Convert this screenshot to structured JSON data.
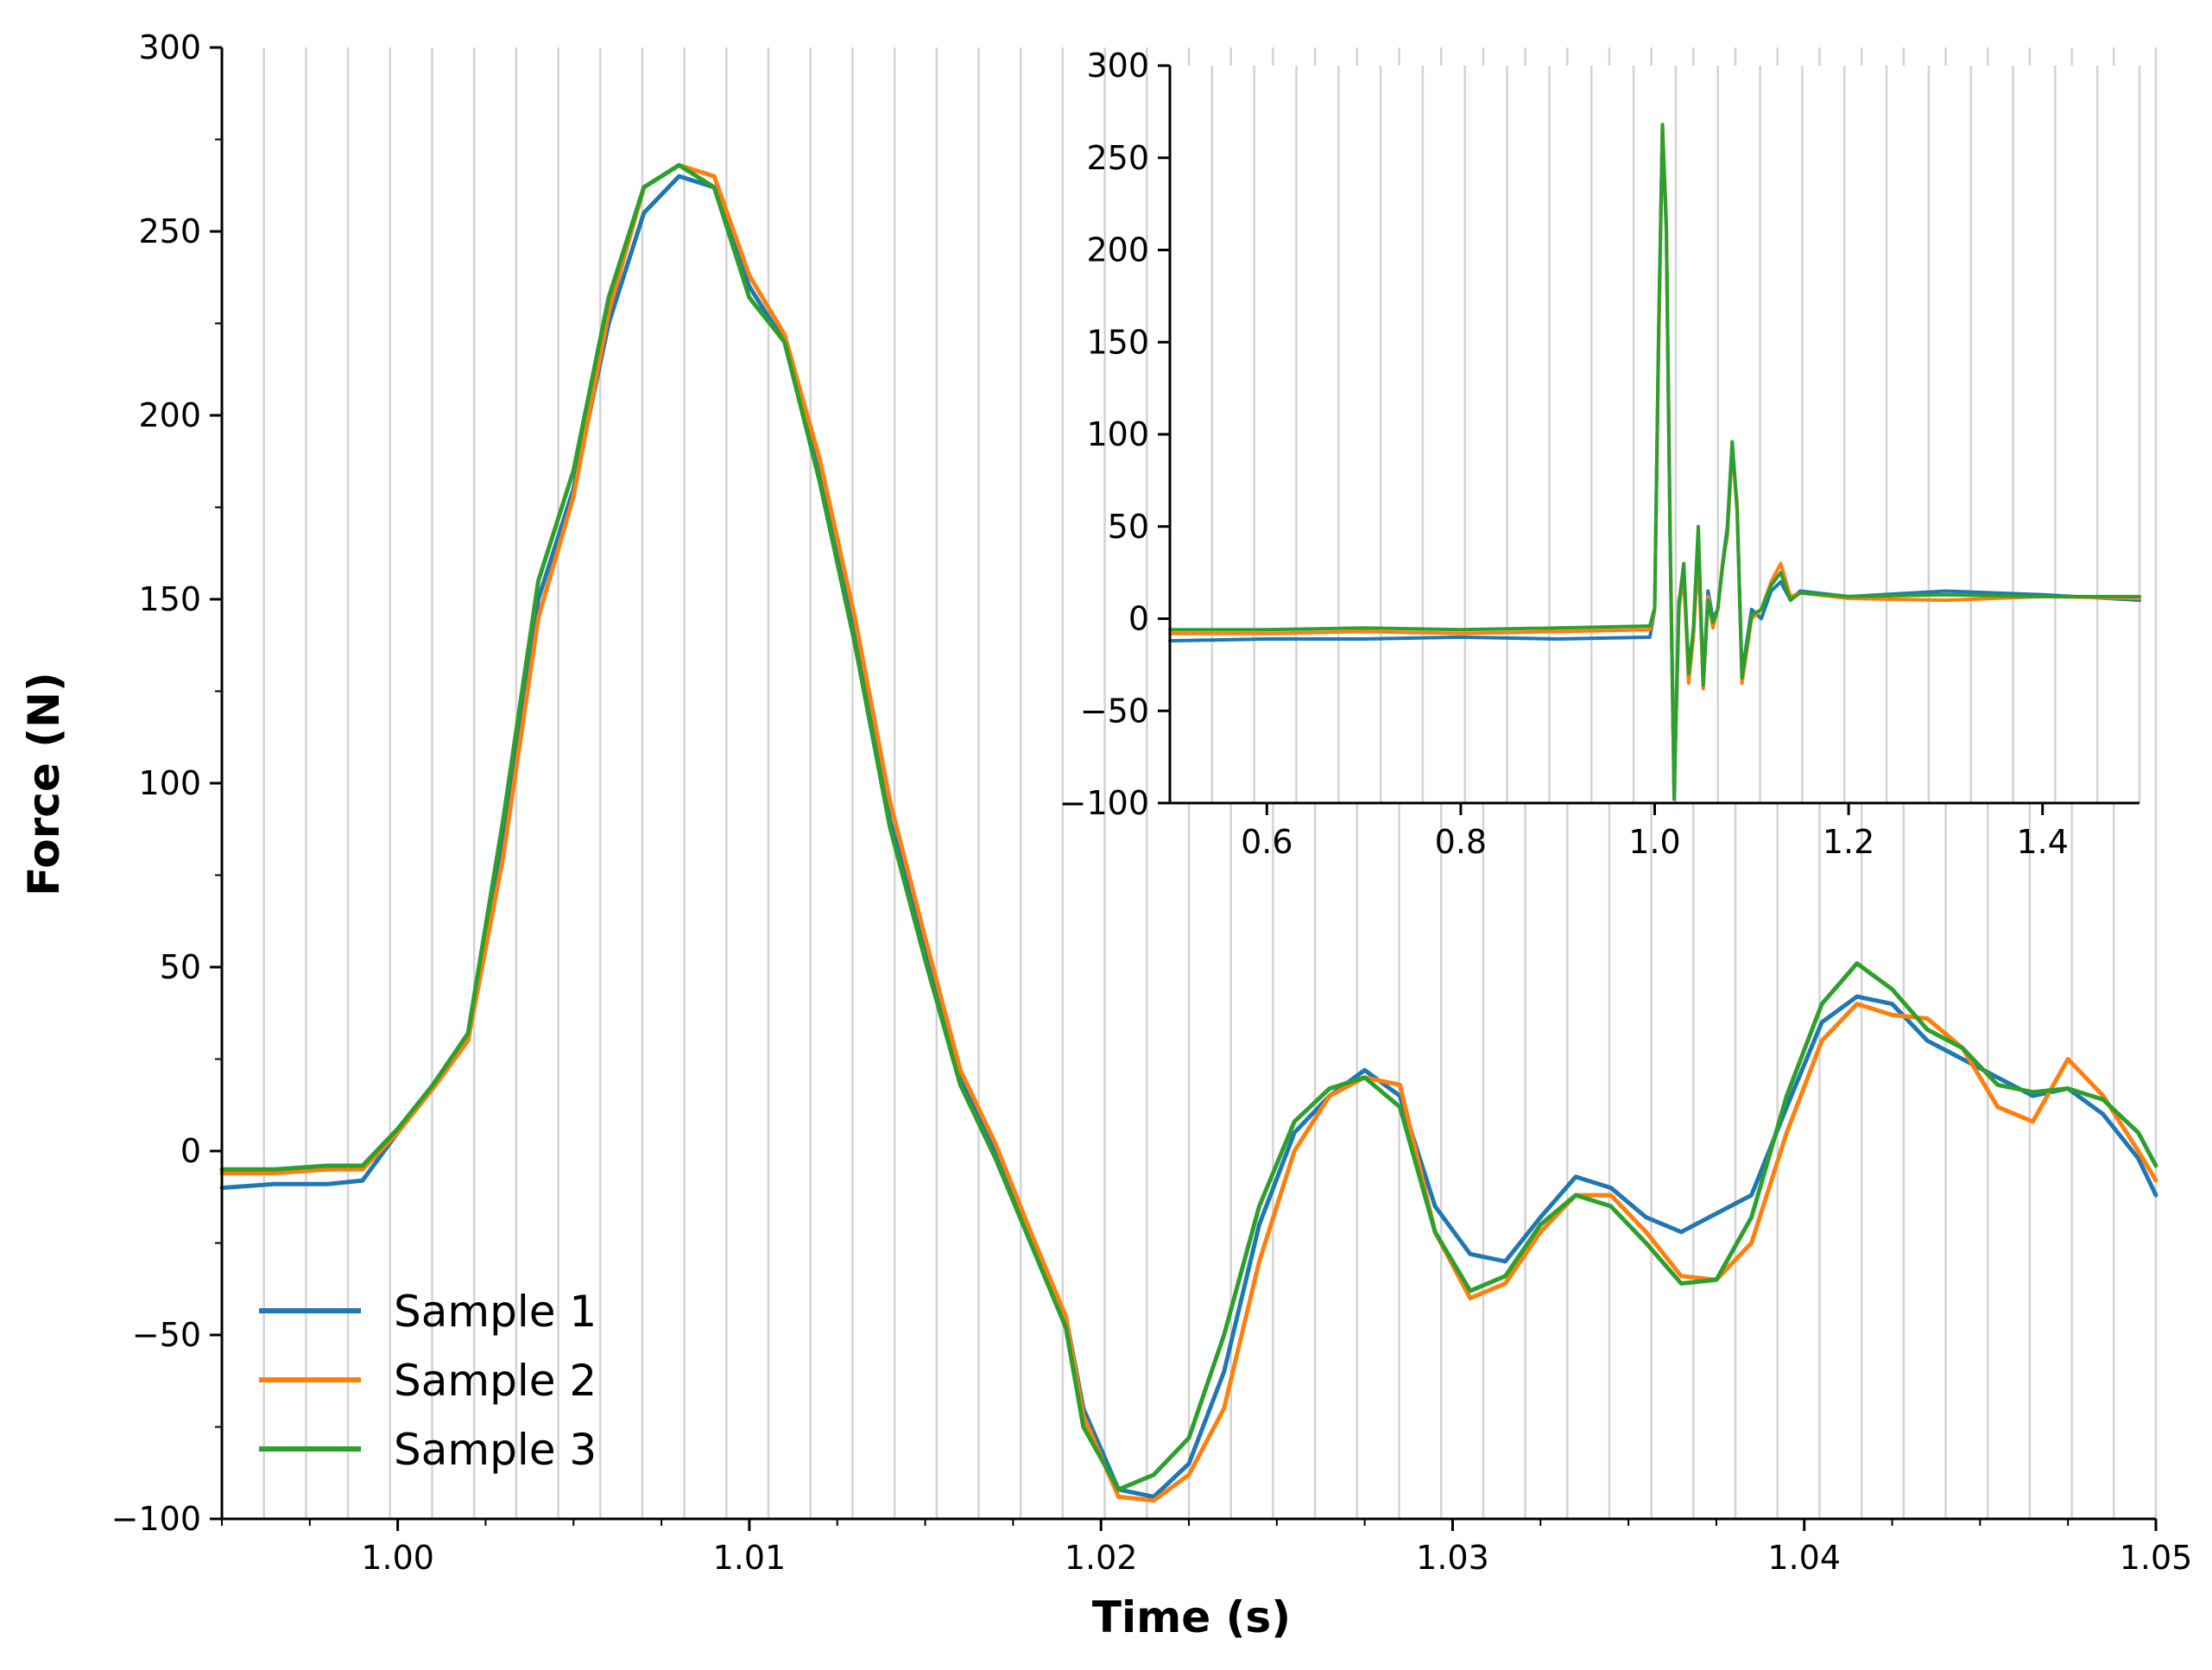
{
  "chart_data": [
    {
      "type": "line",
      "name": "main",
      "xlabel": "Time (s)",
      "ylabel": "Force (N)",
      "xlim": [
        0.995,
        1.05
      ],
      "ylim": [
        -100,
        300
      ],
      "xticks": [
        1.0,
        1.01,
        1.02,
        1.03,
        1.04,
        1.05
      ],
      "xtick_labels": [
        "1.00",
        "1.01",
        "1.02",
        "1.03",
        "1.04",
        "1.05"
      ],
      "yticks": [
        -100,
        -50,
        0,
        50,
        100,
        150,
        200,
        250,
        300
      ],
      "ytick_labels": [
        "−100",
        "−50",
        "0",
        "50",
        "100",
        "150",
        "200",
        "250",
        "300"
      ],
      "legend_position": "lower-left",
      "vertical_gridlines": true,
      "series": [
        {
          "name": "Sample 1",
          "color": "#1f77b4",
          "x": [
            0.995,
            0.9965,
            0.998,
            0.999,
            1.0,
            1.001,
            1.002,
            1.003,
            1.004,
            1.005,
            1.006,
            1.007,
            1.008,
            1.009,
            1.01,
            1.011,
            1.012,
            1.013,
            1.014,
            1.015,
            1.016,
            1.017,
            1.018,
            1.019,
            1.0195,
            1.0205,
            1.0215,
            1.0225,
            1.0235,
            1.0245,
            1.0255,
            1.0265,
            1.0275,
            1.0285,
            1.0295,
            1.0305,
            1.0315,
            1.0325,
            1.0335,
            1.0345,
            1.0355,
            1.0365,
            1.0375,
            1.0385,
            1.0395,
            1.0405,
            1.0415,
            1.0425,
            1.0435,
            1.0445,
            1.0455,
            1.0465,
            1.0475,
            1.0485,
            1.0495,
            1.05
          ],
          "values": [
            -10,
            -9,
            -9,
            -8,
            5,
            18,
            30,
            85,
            150,
            180,
            225,
            255,
            265,
            262,
            235,
            220,
            185,
            140,
            90,
            55,
            20,
            0,
            -25,
            -45,
            -70,
            -92,
            -94,
            -85,
            -60,
            -20,
            5,
            15,
            22,
            15,
            -15,
            -28,
            -30,
            -18,
            -7,
            -10,
            -18,
            -22,
            -17,
            -12,
            12,
            35,
            42,
            40,
            30,
            25,
            20,
            15,
            17,
            10,
            -2,
            -12
          ]
        },
        {
          "name": "Sample 2",
          "color": "#ff7f0e",
          "x": [
            0.995,
            0.9965,
            0.998,
            0.999,
            1.0,
            1.001,
            1.002,
            1.003,
            1.004,
            1.005,
            1.006,
            1.007,
            1.008,
            1.009,
            1.01,
            1.011,
            1.012,
            1.013,
            1.014,
            1.015,
            1.016,
            1.017,
            1.018,
            1.019,
            1.0195,
            1.0205,
            1.0215,
            1.0225,
            1.0235,
            1.0245,
            1.0255,
            1.0265,
            1.0275,
            1.0285,
            1.0295,
            1.0305,
            1.0315,
            1.0325,
            1.0335,
            1.0345,
            1.0355,
            1.0365,
            1.0375,
            1.0385,
            1.0395,
            1.0405,
            1.0415,
            1.0425,
            1.0435,
            1.0445,
            1.0455,
            1.0465,
            1.0475,
            1.0485,
            1.0495,
            1.05
          ],
          "values": [
            -6,
            -6,
            -5,
            -5,
            5,
            17,
            30,
            80,
            145,
            178,
            228,
            262,
            268,
            265,
            238,
            222,
            188,
            145,
            95,
            58,
            22,
            2,
            -22,
            -45,
            -72,
            -94,
            -95,
            -88,
            -70,
            -30,
            0,
            15,
            20,
            18,
            -22,
            -40,
            -36,
            -22,
            -12,
            -12,
            -22,
            -34,
            -35,
            -25,
            5,
            30,
            40,
            37,
            36,
            28,
            12,
            8,
            25,
            15,
            0,
            -8
          ]
        },
        {
          "name": "Sample 3",
          "color": "#2ca02c",
          "x": [
            0.995,
            0.9965,
            0.998,
            0.999,
            1.0,
            1.001,
            1.002,
            1.003,
            1.004,
            1.005,
            1.006,
            1.007,
            1.008,
            1.009,
            1.01,
            1.011,
            1.012,
            1.013,
            1.014,
            1.015,
            1.016,
            1.017,
            1.018,
            1.019,
            1.0195,
            1.0205,
            1.0215,
            1.0225,
            1.0235,
            1.0245,
            1.0255,
            1.0265,
            1.0275,
            1.0285,
            1.0295,
            1.0305,
            1.0315,
            1.0325,
            1.0335,
            1.0345,
            1.0355,
            1.0365,
            1.0375,
            1.0385,
            1.0395,
            1.0405,
            1.0415,
            1.0425,
            1.0435,
            1.0445,
            1.0455,
            1.0465,
            1.0475,
            1.0485,
            1.0495,
            1.05
          ],
          "values": [
            -5,
            -5,
            -4,
            -4,
            6,
            18,
            32,
            90,
            155,
            185,
            232,
            262,
            268,
            262,
            232,
            220,
            182,
            138,
            88,
            52,
            18,
            -2,
            -25,
            -48,
            -75,
            -92,
            -88,
            -78,
            -50,
            -15,
            8,
            17,
            20,
            12,
            -22,
            -38,
            -34,
            -20,
            -12,
            -15,
            -25,
            -36,
            -35,
            -18,
            15,
            40,
            51,
            44,
            33,
            28,
            18,
            16,
            17,
            14,
            5,
            -4
          ]
        }
      ]
    },
    {
      "type": "line",
      "name": "inset",
      "xlabel": "",
      "ylabel": "",
      "xlim": [
        0.5,
        1.5
      ],
      "ylim": [
        -100,
        300
      ],
      "xticks": [
        0.6,
        0.8,
        1.0,
        1.2,
        1.4
      ],
      "xtick_labels": [
        "0.6",
        "0.8",
        "1.0",
        "1.2",
        "1.4"
      ],
      "yticks": [
        -100,
        -50,
        0,
        50,
        100,
        150,
        200,
        250,
        300
      ],
      "ytick_labels": [
        "−100",
        "−50",
        "0",
        "50",
        "100",
        "150",
        "200",
        "250",
        "300"
      ],
      "series": [
        {
          "name": "Sample 1",
          "color": "#1f77b4",
          "x": [
            0.5,
            0.6,
            0.7,
            0.8,
            0.9,
            0.995,
            1.0,
            1.004,
            1.008,
            1.012,
            1.016,
            1.02,
            1.025,
            1.03,
            1.035,
            1.04,
            1.045,
            1.05,
            1.055,
            1.06,
            1.065,
            1.07,
            1.075,
            1.08,
            1.085,
            1.09,
            1.1,
            1.11,
            1.12,
            1.13,
            1.14,
            1.15,
            1.2,
            1.3,
            1.4,
            1.5
          ],
          "values": [
            -12,
            -11,
            -11,
            -10,
            -11,
            -10,
            5,
            150,
            265,
            210,
            40,
            -92,
            10,
            20,
            -25,
            -8,
            35,
            -35,
            15,
            0,
            5,
            30,
            50,
            95,
            60,
            -30,
            5,
            0,
            15,
            20,
            10,
            15,
            12,
            15,
            13,
            10
          ]
        },
        {
          "name": "Sample 2",
          "color": "#ff7f0e",
          "x": [
            0.5,
            0.6,
            0.7,
            0.8,
            0.9,
            0.995,
            1.0,
            1.004,
            1.008,
            1.012,
            1.016,
            1.02,
            1.025,
            1.03,
            1.035,
            1.04,
            1.045,
            1.05,
            1.055,
            1.06,
            1.065,
            1.07,
            1.075,
            1.08,
            1.085,
            1.09,
            1.1,
            1.11,
            1.12,
            1.13,
            1.14,
            1.15,
            1.2,
            1.3,
            1.4,
            1.5
          ],
          "values": [
            -8,
            -8,
            -7,
            -8,
            -7,
            -6,
            5,
            145,
            268,
            215,
            45,
            -94,
            5,
            25,
            -35,
            -10,
            40,
            -38,
            12,
            -5,
            5,
            30,
            45,
            92,
            62,
            -35,
            0,
            5,
            20,
            30,
            12,
            14,
            11,
            10,
            12,
            11
          ]
        },
        {
          "name": "Sample 3",
          "color": "#2ca02c",
          "x": [
            0.5,
            0.6,
            0.7,
            0.8,
            0.9,
            0.995,
            1.0,
            1.004,
            1.008,
            1.012,
            1.016,
            1.02,
            1.025,
            1.03,
            1.035,
            1.04,
            1.045,
            1.05,
            1.055,
            1.06,
            1.065,
            1.07,
            1.075,
            1.08,
            1.085,
            1.09,
            1.1,
            1.11,
            1.12,
            1.13,
            1.14,
            1.15,
            1.2,
            1.3,
            1.4,
            1.5
          ],
          "values": [
            -6,
            -6,
            -5,
            -6,
            -5,
            -4,
            6,
            155,
            268,
            212,
            40,
            -98,
            8,
            30,
            -30,
            -5,
            50,
            -36,
            10,
            -2,
            5,
            28,
            48,
            96,
            58,
            -32,
            2,
            5,
            18,
            25,
            10,
            14,
            12,
            13,
            12,
            12
          ]
        }
      ]
    }
  ]
}
